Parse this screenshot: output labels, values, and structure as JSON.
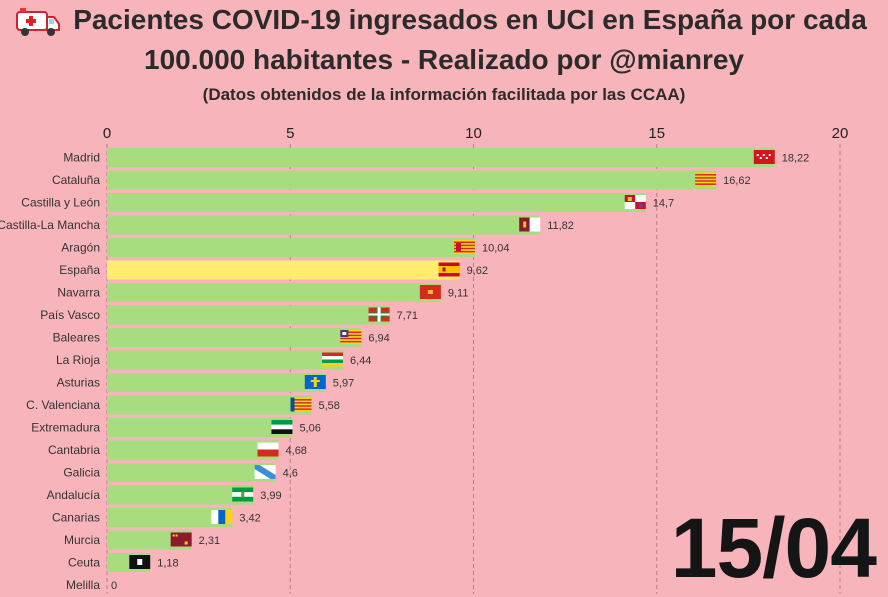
{
  "title": "Pacientes COVID-19 ingresados en UCI en España por cada",
  "title_line2": "100.000 habitantes - Realizado por @mianrey",
  "subtitle": "(Datos obtenidos de la información facilitada por las CCAA)",
  "date": "15/04",
  "icons": {
    "title_icon": "ambulance-icon"
  },
  "colors": {
    "background": "#f8b4bb",
    "bar": "#a8dd7f",
    "highlight": "#ffee6e"
  },
  "chart_data": {
    "type": "bar",
    "orientation": "horizontal",
    "title": "Pacientes COVID-19 ingresados en UCI en España por cada 100.000 habitantes - Realizado por @mianrey",
    "xlim": [
      0,
      20
    ],
    "xticks": [
      0,
      5,
      10,
      15,
      20
    ],
    "grid": "vertical dashed",
    "highlight": "España",
    "categories": [
      "Madrid",
      "Cataluña",
      "Castilla y León",
      "Castilla-La Mancha",
      "Aragón",
      "España",
      "Navarra",
      "País Vasco",
      "Baleares",
      "La Rioja",
      "Asturias",
      "C. Valenciana",
      "Extremadura",
      "Cantabria",
      "Galicia",
      "Andalucía",
      "Canarias",
      "Murcia",
      "Ceuta",
      "Melilla"
    ],
    "values": [
      18.22,
      16.62,
      14.7,
      11.82,
      10.04,
      9.62,
      9.11,
      7.71,
      6.94,
      6.44,
      5.97,
      5.58,
      5.06,
      4.68,
      4.6,
      3.99,
      3.42,
      2.31,
      1.18,
      0
    ],
    "value_labels": [
      "18,22",
      "16,62",
      "14,7",
      "11,82",
      "10,04",
      "9,62",
      "9,11",
      "7,71",
      "6,94",
      "6,44",
      "5,97",
      "5,58",
      "5,06",
      "4,68",
      "4,6",
      "3,99",
      "3,42",
      "2,31",
      "1,18",
      "0"
    ],
    "flags": [
      "flag-madrid-icon",
      "flag-cataluna-icon",
      "flag-castilla-y-leon-icon",
      "flag-castilla-la-mancha-icon",
      "flag-aragon-icon",
      "flag-espana-icon",
      "flag-navarra-icon",
      "flag-pais-vasco-icon",
      "flag-baleares-icon",
      "flag-la-rioja-icon",
      "flag-asturias-icon",
      "flag-c-valenciana-icon",
      "flag-extremadura-icon",
      "flag-cantabria-icon",
      "flag-galicia-icon",
      "flag-andalucia-icon",
      "flag-canarias-icon",
      "flag-murcia-icon",
      "flag-ceuta-icon",
      "flag-melilla-icon"
    ]
  }
}
